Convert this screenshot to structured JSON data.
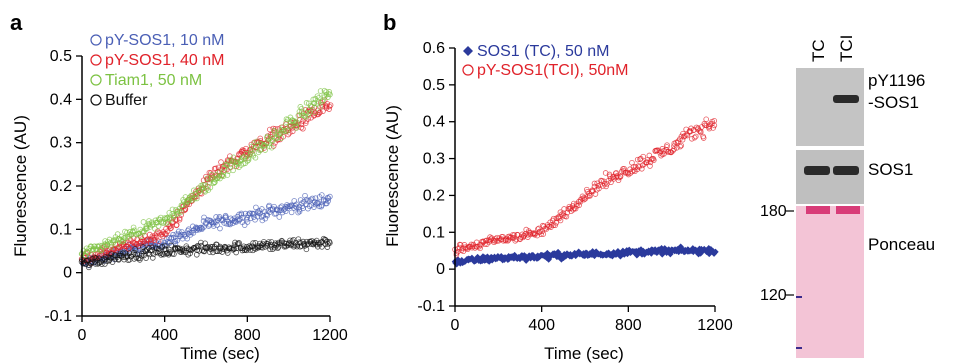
{
  "panels": {
    "a": "a",
    "b": "b"
  },
  "chart_data": [
    {
      "type": "scatter",
      "panel": "a",
      "xlabel": "Time (sec)",
      "ylabel": "Fluorescence (AU)",
      "xlim": [
        0,
        1200
      ],
      "ylim": [
        -0.1,
        0.5
      ],
      "xticks": [
        "0",
        "400",
        "800",
        "1200"
      ],
      "yticks": [
        "-0.1",
        "0",
        "0.1",
        "0.2",
        "0.3",
        "0.4",
        "0.5"
      ],
      "legend_position": "top-left",
      "series": [
        {
          "name": "pY-SOS1, 10 nM",
          "color": "#4a5fb5",
          "marker": "open-circle",
          "x": [
            0,
            200,
            400,
            500,
            600,
            700,
            800,
            900,
            1000,
            1100,
            1200
          ],
          "y": [
            0.02,
            0.05,
            0.07,
            0.09,
            0.11,
            0.12,
            0.13,
            0.14,
            0.15,
            0.16,
            0.17
          ]
        },
        {
          "name": "pY-SOS1, 40 nM",
          "color": "#e0222a",
          "marker": "open-circle",
          "x": [
            0,
            200,
            400,
            500,
            600,
            700,
            800,
            900,
            1000,
            1100,
            1200
          ],
          "y": [
            0.03,
            0.06,
            0.09,
            0.15,
            0.21,
            0.25,
            0.28,
            0.31,
            0.33,
            0.36,
            0.39
          ]
        },
        {
          "name": "Tiam1, 50 nM",
          "color": "#7cc242",
          "marker": "open-circle",
          "x": [
            0,
            200,
            400,
            500,
            600,
            700,
            800,
            900,
            1000,
            1100,
            1200
          ],
          "y": [
            0.04,
            0.08,
            0.12,
            0.16,
            0.2,
            0.24,
            0.27,
            0.3,
            0.34,
            0.38,
            0.42
          ]
        },
        {
          "name": "Buffer",
          "color": "#111111",
          "marker": "open-circle",
          "x": [
            0,
            200,
            400,
            600,
            800,
            1000,
            1200
          ],
          "y": [
            0.02,
            0.04,
            0.05,
            0.055,
            0.06,
            0.065,
            0.07
          ]
        }
      ]
    },
    {
      "type": "scatter",
      "panel": "b",
      "xlabel": "Time (sec)",
      "ylabel": "Fluorescence (AU)",
      "xlim": [
        0,
        1200
      ],
      "ylim": [
        -0.1,
        0.6
      ],
      "xticks": [
        "0",
        "400",
        "800",
        "1200"
      ],
      "yticks": [
        "-0.1",
        "0",
        "0.1",
        "0.2",
        "0.3",
        "0.4",
        "0.5",
        "0.6"
      ],
      "legend_position": "top-left",
      "series": [
        {
          "name": "SOS1 (TC), 50 nM",
          "color": "#2b3a9c",
          "marker": "filled-diamond",
          "x": [
            0,
            200,
            400,
            600,
            800,
            1000,
            1200
          ],
          "y": [
            0.02,
            0.03,
            0.035,
            0.04,
            0.045,
            0.05,
            0.05
          ]
        },
        {
          "name": "pY-SOS1(TCI), 50nM",
          "color": "#e0222a",
          "marker": "open-circle",
          "x": [
            0,
            200,
            400,
            500,
            600,
            700,
            800,
            900,
            1000,
            1100,
            1200
          ],
          "y": [
            0.05,
            0.08,
            0.1,
            0.15,
            0.2,
            0.24,
            0.27,
            0.3,
            0.33,
            0.37,
            0.4
          ]
        }
      ]
    }
  ],
  "blot": {
    "lanes": [
      "TC",
      "TCI"
    ],
    "band_labels": [
      "pY1196",
      "-SOS1",
      "SOS1",
      "Ponceau"
    ],
    "markers": [
      "180",
      "120"
    ]
  }
}
